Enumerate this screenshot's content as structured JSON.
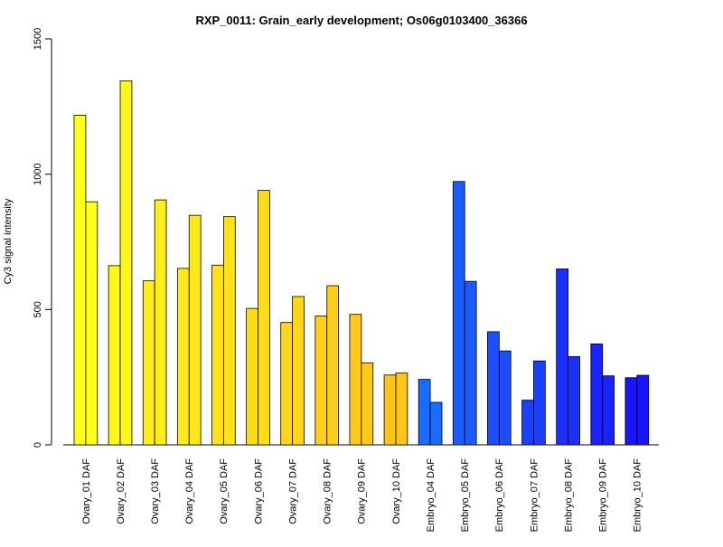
{
  "chart_data": {
    "type": "bar",
    "title": "RXP_0011: Grain_early development; Os06g0103400_36366",
    "xlabel": "",
    "ylabel": "Cy3 signal intensity",
    "ylim": [
      0,
      1500
    ],
    "yticks": [
      0,
      500,
      1000,
      1500
    ],
    "grid": false,
    "legend": "none",
    "categories": [
      "Ovary_01 DAF",
      "Ovary_02 DAF",
      "Ovary_03 DAF",
      "Ovary_04 DAF",
      "Ovary_05 DAF",
      "Ovary_06 DAF",
      "Ovary_07 DAF",
      "Ovary_08 DAF",
      "Ovary_09 DAF",
      "Ovary_10 DAF",
      "Embryo_04 DAF",
      "Embryo_05 DAF",
      "Embryo_06 DAF",
      "Embryo_07 DAF",
      "Embryo_08 DAF",
      "Embryo_09 DAF",
      "Embryo_10 DAF"
    ],
    "series": [
      {
        "values": [
          1218,
          662,
          606,
          652,
          664,
          504,
          452,
          476,
          482,
          258,
          242,
          973,
          418,
          165,
          650,
          373,
          248
        ]
      },
      {
        "values": [
          898,
          1345,
          905,
          848,
          843,
          940,
          548,
          588,
          303,
          265,
          157,
          604,
          347,
          310,
          326,
          255,
          257
        ]
      }
    ],
    "colors": [
      "#FFFF1A",
      "#FFF71A",
      "#FFEE1A",
      "#FFE81A",
      "#FFE21A",
      "#FFDC1A",
      "#FFD61A",
      "#FFD01A",
      "#FFCA1A",
      "#FFC41A",
      "#1A6CFF",
      "#1A5CFF",
      "#1A4EFF",
      "#1A40FF",
      "#1A30FF",
      "#1A22FF",
      "#1A14FF"
    ]
  }
}
